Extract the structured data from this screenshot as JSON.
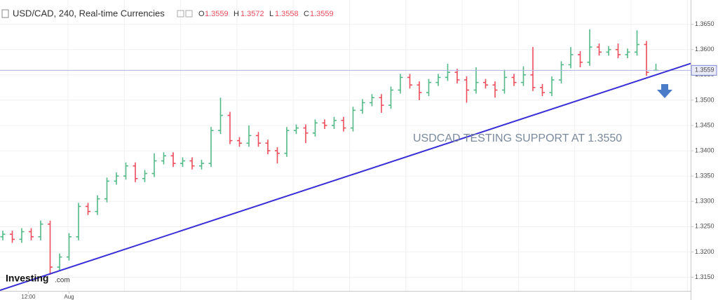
{
  "chart_data": {
    "type": "ohlc",
    "title": "USD/CAD, 240, Real-time Currencies",
    "ohlc_header": {
      "open_label": "O",
      "high_label": "H",
      "low_label": "L",
      "close_label": "C"
    },
    "annotation": "USDCAD TESTING SUPPORT AT 1.3550",
    "logo_main": "Investing",
    "logo_suffix": ".com",
    "up_color": "#53b987",
    "down_color": "#eb4d5c",
    "trendline": {
      "color": "#3a2fd6",
      "values": [
        1.3126,
        1.355
      ]
    },
    "open": [
      1.323,
      1.3235,
      1.3225,
      1.324,
      1.323,
      1.3255,
      1.317,
      1.319,
      1.323,
      1.329,
      1.328,
      1.3305,
      1.334,
      1.335,
      1.337,
      1.3345,
      1.3355,
      1.338,
      1.339,
      1.3375,
      1.338,
      1.337,
      1.3375,
      1.344,
      1.347,
      1.342,
      1.3415,
      1.343,
      1.3415,
      1.34,
      1.3395,
      1.344,
      1.3445,
      1.3435,
      1.3455,
      1.345,
      1.346,
      1.3445,
      1.348,
      1.3495,
      1.3505,
      1.349,
      1.352,
      1.3545,
      1.353,
      1.3515,
      1.3535,
      1.3545,
      1.3555,
      1.354,
      1.352,
      1.3535,
      1.353,
      1.352,
      1.3545,
      1.3535,
      1.355,
      1.3525,
      1.3515,
      1.354,
      1.357,
      1.359,
      1.3575,
      1.3605,
      1.3595,
      1.36,
      1.359,
      1.3595,
      1.361,
      1.3559
    ],
    "high": [
      1.3242,
      1.3242,
      1.3247,
      1.3247,
      1.3262,
      1.3262,
      1.3197,
      1.3237,
      1.3297,
      1.3297,
      1.3312,
      1.3347,
      1.3357,
      1.3377,
      1.3377,
      1.3362,
      1.3395,
      1.3397,
      1.3397,
      1.3387,
      1.3387,
      1.3382,
      1.3447,
      1.3505,
      1.3477,
      1.3427,
      1.345,
      1.3437,
      1.3422,
      1.3407,
      1.3447,
      1.3452,
      1.3452,
      1.3462,
      1.3462,
      1.3467,
      1.3467,
      1.3487,
      1.3502,
      1.3512,
      1.3512,
      1.3527,
      1.3552,
      1.3552,
      1.3537,
      1.3542,
      1.3552,
      1.3572,
      1.3562,
      1.3547,
      1.3565,
      1.3542,
      1.3537,
      1.356,
      1.3552,
      1.3567,
      1.3605,
      1.3532,
      1.3547,
      1.3577,
      1.3605,
      1.3597,
      1.364,
      1.3612,
      1.3607,
      1.3612,
      1.3602,
      1.3638,
      1.3617,
      1.3572
    ],
    "low": [
      1.3223,
      1.3218,
      1.3218,
      1.3223,
      1.3223,
      1.3155,
      1.3163,
      1.3183,
      1.3223,
      1.3273,
      1.3273,
      1.3298,
      1.3333,
      1.3343,
      1.3338,
      1.3338,
      1.3348,
      1.3373,
      1.3368,
      1.3368,
      1.3363,
      1.3363,
      1.3368,
      1.3433,
      1.3413,
      1.3408,
      1.3408,
      1.3408,
      1.3393,
      1.3375,
      1.3388,
      1.3433,
      1.3415,
      1.3428,
      1.3443,
      1.3443,
      1.3438,
      1.3438,
      1.3473,
      1.3488,
      1.3475,
      1.3483,
      1.3513,
      1.3523,
      1.35,
      1.3508,
      1.3528,
      1.3538,
      1.3533,
      1.3495,
      1.3513,
      1.3523,
      1.3505,
      1.3513,
      1.3528,
      1.3528,
      1.3518,
      1.3508,
      1.3508,
      1.3533,
      1.3563,
      1.3565,
      1.3568,
      1.3588,
      1.3588,
      1.3583,
      1.3583,
      1.3588,
      1.3548,
      1.3558
    ],
    "close": [
      1.3235,
      1.3225,
      1.324,
      1.323,
      1.3255,
      1.317,
      1.319,
      1.323,
      1.329,
      1.328,
      1.3305,
      1.334,
      1.335,
      1.337,
      1.3345,
      1.3355,
      1.338,
      1.339,
      1.3375,
      1.338,
      1.337,
      1.3375,
      1.344,
      1.347,
      1.342,
      1.3415,
      1.343,
      1.3415,
      1.34,
      1.3395,
      1.344,
      1.3445,
      1.3435,
      1.3455,
      1.345,
      1.346,
      1.3445,
      1.348,
      1.3495,
      1.3505,
      1.349,
      1.352,
      1.3545,
      1.353,
      1.3515,
      1.3535,
      1.3545,
      1.3555,
      1.354,
      1.352,
      1.3535,
      1.353,
      1.352,
      1.3545,
      1.3535,
      1.355,
      1.3525,
      1.3515,
      1.354,
      1.357,
      1.359,
      1.3575,
      1.3605,
      1.3595,
      1.36,
      1.359,
      1.3595,
      1.361,
      1.3555,
      1.3559
    ],
    "xticks": [
      {
        "value": 2.7,
        "label": "12:00"
      },
      {
        "value": 7,
        "label": "Aug"
      }
    ],
    "ylim": [
      1.3123,
      1.3698
    ],
    "yticks": [
      {
        "value": 1.315,
        "label": "1.3150"
      },
      {
        "value": 1.32,
        "label": "1.3200"
      },
      {
        "value": 1.325,
        "label": "1.3250"
      },
      {
        "value": 1.33,
        "label": "1.3300"
      },
      {
        "value": 1.335,
        "label": "1.3350"
      },
      {
        "value": 1.34,
        "label": "1.3400"
      },
      {
        "value": 1.345,
        "label": "1.3450"
      },
      {
        "value": 1.35,
        "label": "1.3500"
      },
      {
        "value": 1.355,
        "label": "1.3550"
      },
      {
        "value": 1.36,
        "label": "1.3600"
      },
      {
        "value": 1.365,
        "label": "1.3650"
      }
    ],
    "grid": true
  }
}
